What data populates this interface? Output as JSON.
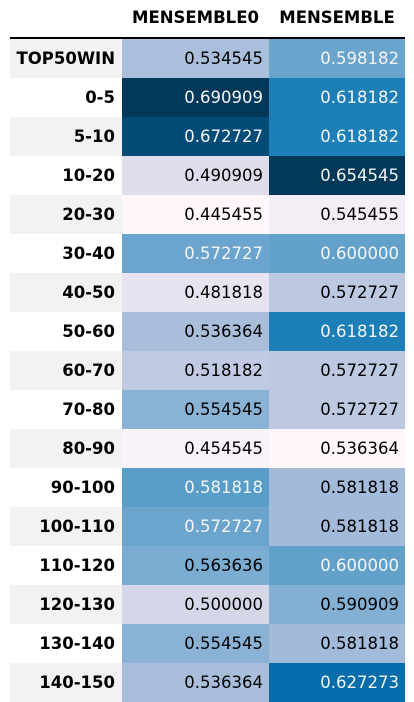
{
  "chart_data": {
    "type": "table",
    "columns": [
      "MENSEMBLE0",
      "MENSEMBLE"
    ],
    "rows": [
      {
        "label": "TOP50WIN",
        "values": [
          "0.534545",
          "0.598182"
        ]
      },
      {
        "label": "0-5",
        "values": [
          "0.690909",
          "0.618182"
        ]
      },
      {
        "label": "5-10",
        "values": [
          "0.672727",
          "0.618182"
        ]
      },
      {
        "label": "10-20",
        "values": [
          "0.490909",
          "0.654545"
        ]
      },
      {
        "label": "20-30",
        "values": [
          "0.445455",
          "0.545455"
        ]
      },
      {
        "label": "30-40",
        "values": [
          "0.572727",
          "0.600000"
        ]
      },
      {
        "label": "40-50",
        "values": [
          "0.481818",
          "0.572727"
        ]
      },
      {
        "label": "50-60",
        "values": [
          "0.536364",
          "0.618182"
        ]
      },
      {
        "label": "60-70",
        "values": [
          "0.518182",
          "0.572727"
        ]
      },
      {
        "label": "70-80",
        "values": [
          "0.554545",
          "0.572727"
        ]
      },
      {
        "label": "80-90",
        "values": [
          "0.454545",
          "0.536364"
        ]
      },
      {
        "label": "90-100",
        "values": [
          "0.581818",
          "0.581818"
        ]
      },
      {
        "label": "100-110",
        "values": [
          "0.572727",
          "0.581818"
        ]
      },
      {
        "label": "110-120",
        "values": [
          "0.563636",
          "0.600000"
        ]
      },
      {
        "label": "120-130",
        "values": [
          "0.500000",
          "0.590909"
        ]
      },
      {
        "label": "130-140",
        "values": [
          "0.554545",
          "0.581818"
        ]
      },
      {
        "label": "140-150",
        "values": [
          "0.536364",
          "0.627273"
        ]
      }
    ],
    "colorscale": {
      "name": "PuBu",
      "stops": [
        "#fff7fb",
        "#ece7f2",
        "#d0d1e6",
        "#a6bddb",
        "#74a9cf",
        "#3690c0",
        "#0570b0",
        "#045a8d",
        "#023858"
      ],
      "per_column": true
    },
    "row_shading": "#f2f2f2"
  }
}
